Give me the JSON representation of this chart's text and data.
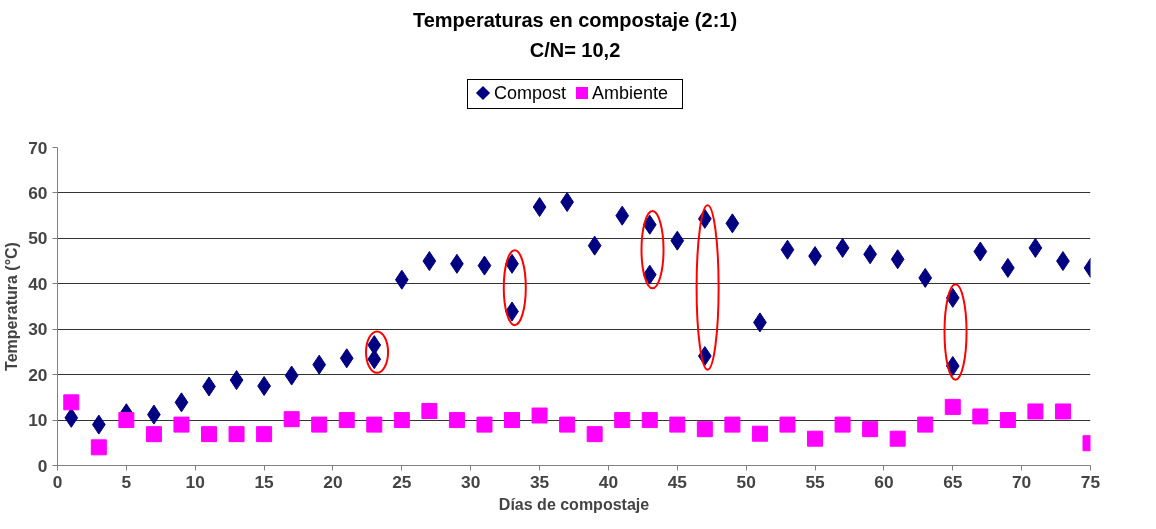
{
  "chart_data": {
    "type": "scatter",
    "title": "Temperaturas en compostaje (2:1)",
    "subtitle": "C/N= 10,2",
    "xlabel": "Días de compostaje",
    "ylabel": "Temperatura (°C)",
    "series": [
      {
        "name": "Compost",
        "color": "#000080",
        "marker": "diamond",
        "x": [
          1,
          3,
          5,
          7,
          9,
          11,
          13,
          15,
          17,
          19,
          21,
          23,
          23,
          25,
          27,
          29,
          31,
          33,
          33,
          35,
          37,
          39,
          41,
          43,
          43,
          45,
          47,
          47,
          49,
          51,
          53,
          55,
          57,
          59,
          61,
          63,
          65,
          65,
          67,
          69,
          71,
          73,
          75
        ],
        "values": [
          10.5,
          9,
          11.5,
          11.2,
          13.9,
          17.4,
          18.8,
          17.5,
          19.8,
          22.2,
          23.6,
          26.5,
          23.4,
          40.9,
          45,
          44.4,
          44,
          44.4,
          33.9,
          56.9,
          58,
          48.4,
          55,
          53,
          42,
          49.5,
          54.3,
          24.1,
          53.3,
          31.5,
          47.5,
          46.1,
          47.9,
          46.5,
          45.4,
          41.3,
          36.9,
          21.9,
          47.1,
          43.5,
          47.9,
          45,
          43.5
        ]
      },
      {
        "name": "Ambiente",
        "color": "#ff00ff",
        "marker": "square",
        "x": [
          1,
          3,
          5,
          7,
          9,
          11,
          13,
          15,
          17,
          19,
          21,
          23,
          25,
          27,
          29,
          31,
          33,
          35,
          37,
          39,
          41,
          43,
          45,
          47,
          49,
          51,
          53,
          55,
          57,
          59,
          61,
          63,
          65,
          67,
          69,
          71,
          73,
          75
        ],
        "values": [
          13.9,
          4,
          10,
          6.9,
          9,
          6.9,
          6.9,
          6.9,
          10.2,
          9,
          10,
          9,
          10,
          12,
          10,
          9,
          10,
          11,
          9,
          6.9,
          10,
          10,
          9,
          8,
          9,
          7,
          9,
          5.9,
          9,
          8,
          5.9,
          9,
          12.9,
          10.8,
          10,
          11.9,
          11.9,
          4.9
        ]
      }
    ],
    "xlim": [
      0,
      75
    ],
    "ylim": [
      0,
      70
    ],
    "xticks": [
      0,
      5,
      10,
      15,
      20,
      25,
      30,
      35,
      40,
      45,
      50,
      55,
      60,
      65,
      70,
      75
    ],
    "yticks": [
      0,
      10,
      20,
      30,
      40,
      50,
      60,
      70
    ],
    "grid": "y",
    "legend": "top"
  }
}
